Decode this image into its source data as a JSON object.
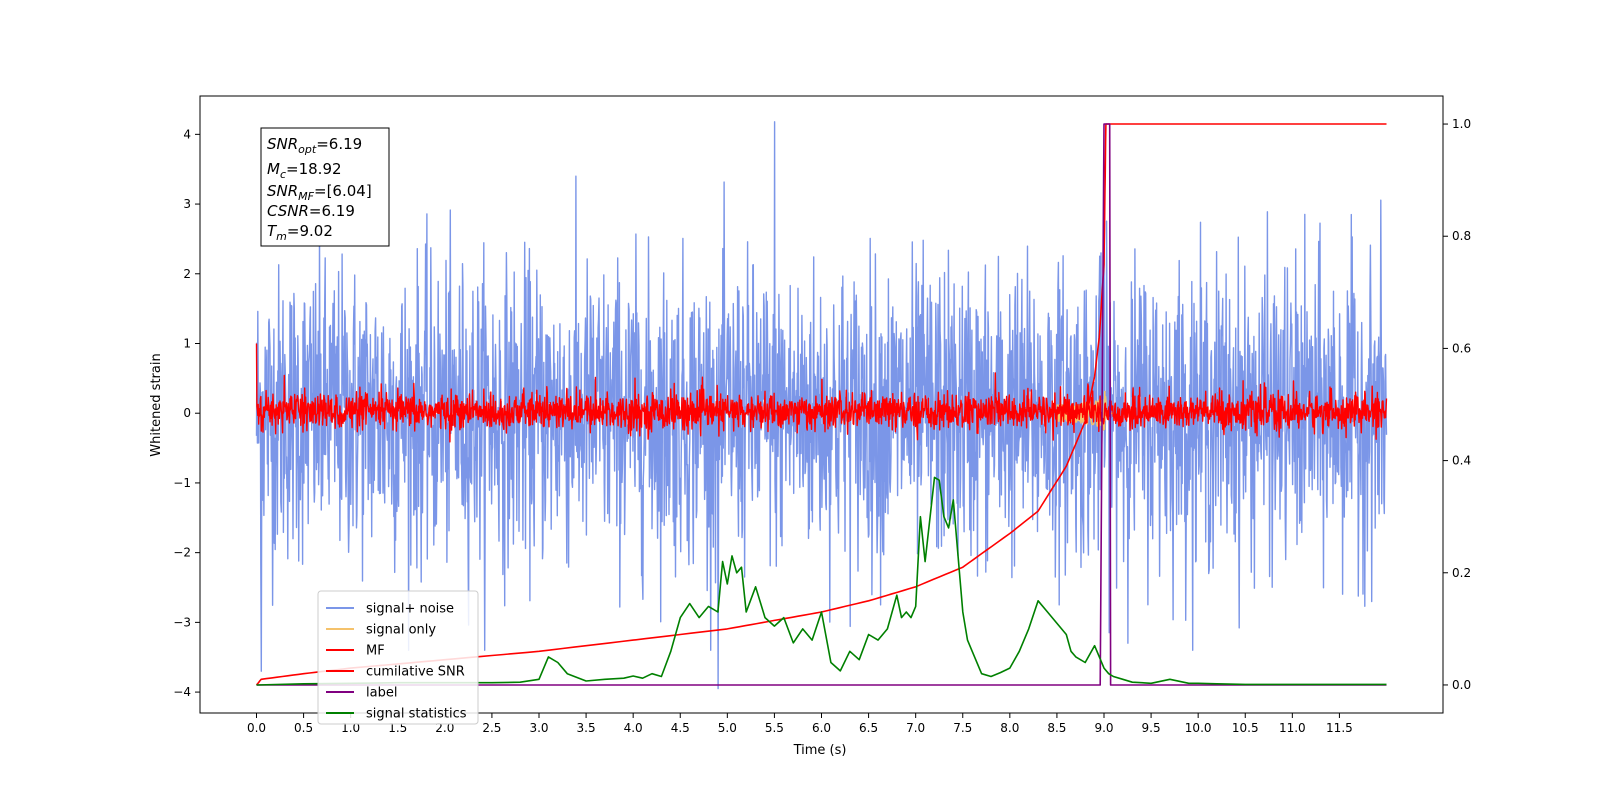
{
  "chart_data": {
    "type": "line",
    "title": "",
    "xlabel": "Time (s)",
    "ylabel": "Whitened strain",
    "xlim": [
      -0.6,
      12.6
    ],
    "ylim_left": [
      -4.3,
      4.55
    ],
    "ylim_right": [
      -0.05,
      1.05
    ],
    "x_ticks": [
      "0.0",
      "0.5",
      "1.0",
      "1.5",
      "2.0",
      "2.5",
      "3.0",
      "3.5",
      "4.0",
      "4.5",
      "5.0",
      "5.5",
      "6.0",
      "6.5",
      "7.0",
      "7.5",
      "8.0",
      "8.5",
      "9.0",
      "9.5",
      "10.0",
      "10.5",
      "11.0",
      "11.5"
    ],
    "y_left_ticks": [
      "4",
      "3",
      "2",
      "1",
      "0",
      "−1",
      "−2",
      "−3",
      "−4"
    ],
    "y_right_ticks": [
      "1.0",
      "0.8",
      "0.6",
      "0.4",
      "0.2",
      "0.0"
    ],
    "legend_position": "lower-left",
    "annotation": {
      "snr_opt_value": "6.19",
      "mc_value": "18.92",
      "snr_mf_value": "[6.04]",
      "csnr_value": "6.19",
      "tm_value": "9.02"
    },
    "series": [
      {
        "name": "signal+ noise",
        "color": "#7b96e8",
        "axis": "left",
        "style": "noise",
        "x_range": [
          0,
          12
        ],
        "amplitude_approx": 4.2,
        "spikes": [
          [
            5.5,
            4.18
          ],
          [
            4.9,
            -3.95
          ],
          [
            0.05,
            -3.7
          ],
          [
            9.0,
            3.05
          ]
        ]
      },
      {
        "name": "signal only",
        "color": "#f5c26b",
        "axis": "left",
        "style": "chirp",
        "merger_time": 9.02,
        "peak_amplitude": 0.35
      },
      {
        "name": "MF",
        "color": "#ff0000",
        "axis": "left",
        "style": "noise",
        "x_range": [
          0,
          12
        ],
        "amplitude_approx": 0.5,
        "start_value": 1.0
      },
      {
        "name": "cumilative SNR",
        "color": "#ff0000",
        "axis": "right",
        "x": [
          0,
          0.05,
          0.5,
          1.0,
          2.0,
          3.0,
          4.0,
          5.0,
          5.5,
          6.0,
          6.5,
          7.0,
          7.5,
          8.0,
          8.3,
          8.6,
          8.8,
          8.9,
          8.95,
          9.0,
          9.02,
          12.0
        ],
        "values": [
          0.0,
          0.01,
          0.02,
          0.03,
          0.045,
          0.06,
          0.08,
          0.1,
          0.115,
          0.13,
          0.15,
          0.175,
          0.21,
          0.27,
          0.31,
          0.39,
          0.47,
          0.55,
          0.62,
          0.75,
          1.0,
          1.0
        ]
      },
      {
        "name": "label",
        "color": "#800080",
        "axis": "right",
        "x": [
          0,
          8.95,
          8.96,
          9.0,
          9.06,
          9.07,
          12.0
        ],
        "values": [
          0,
          0,
          0.0,
          1.0,
          1.0,
          0,
          0
        ]
      },
      {
        "name": "signal statistics",
        "color": "#008000",
        "axis": "right",
        "x": [
          0,
          0.5,
          1.0,
          1.5,
          2.0,
          2.5,
          2.8,
          3.0,
          3.1,
          3.2,
          3.3,
          3.5,
          3.7,
          3.9,
          4.0,
          4.1,
          4.2,
          4.3,
          4.4,
          4.5,
          4.6,
          4.7,
          4.8,
          4.9,
          4.95,
          5.0,
          5.05,
          5.1,
          5.15,
          5.2,
          5.3,
          5.4,
          5.5,
          5.6,
          5.7,
          5.8,
          5.9,
          6.0,
          6.1,
          6.2,
          6.3,
          6.4,
          6.5,
          6.6,
          6.7,
          6.8,
          6.85,
          6.9,
          6.95,
          7.0,
          7.05,
          7.1,
          7.2,
          7.25,
          7.3,
          7.35,
          7.4,
          7.5,
          7.55,
          7.6,
          7.7,
          7.8,
          7.9,
          8.0,
          8.1,
          8.2,
          8.3,
          8.4,
          8.5,
          8.6,
          8.65,
          8.7,
          8.8,
          8.9,
          9.0,
          9.05,
          9.1,
          9.2,
          9.3,
          9.4,
          9.5,
          9.7,
          9.9,
          10.0,
          10.2,
          10.5,
          11.0,
          11.5,
          12.0
        ],
        "values": [
          0.0,
          0.002,
          0.003,
          0.004,
          0.004,
          0.004,
          0.005,
          0.01,
          0.05,
          0.04,
          0.02,
          0.007,
          0.01,
          0.012,
          0.016,
          0.012,
          0.02,
          0.015,
          0.06,
          0.12,
          0.145,
          0.12,
          0.14,
          0.13,
          0.22,
          0.18,
          0.23,
          0.2,
          0.21,
          0.13,
          0.175,
          0.12,
          0.105,
          0.12,
          0.075,
          0.1,
          0.08,
          0.13,
          0.04,
          0.025,
          0.06,
          0.045,
          0.09,
          0.08,
          0.1,
          0.16,
          0.12,
          0.13,
          0.12,
          0.14,
          0.3,
          0.22,
          0.37,
          0.365,
          0.3,
          0.28,
          0.33,
          0.13,
          0.08,
          0.06,
          0.02,
          0.015,
          0.022,
          0.03,
          0.06,
          0.1,
          0.15,
          0.13,
          0.11,
          0.09,
          0.06,
          0.05,
          0.04,
          0.07,
          0.03,
          0.02,
          0.015,
          0.01,
          0.005,
          0.004,
          0.003,
          0.01,
          0.003,
          0.003,
          0.002,
          0.001,
          0.001,
          0.001,
          0.001
        ]
      }
    ]
  }
}
